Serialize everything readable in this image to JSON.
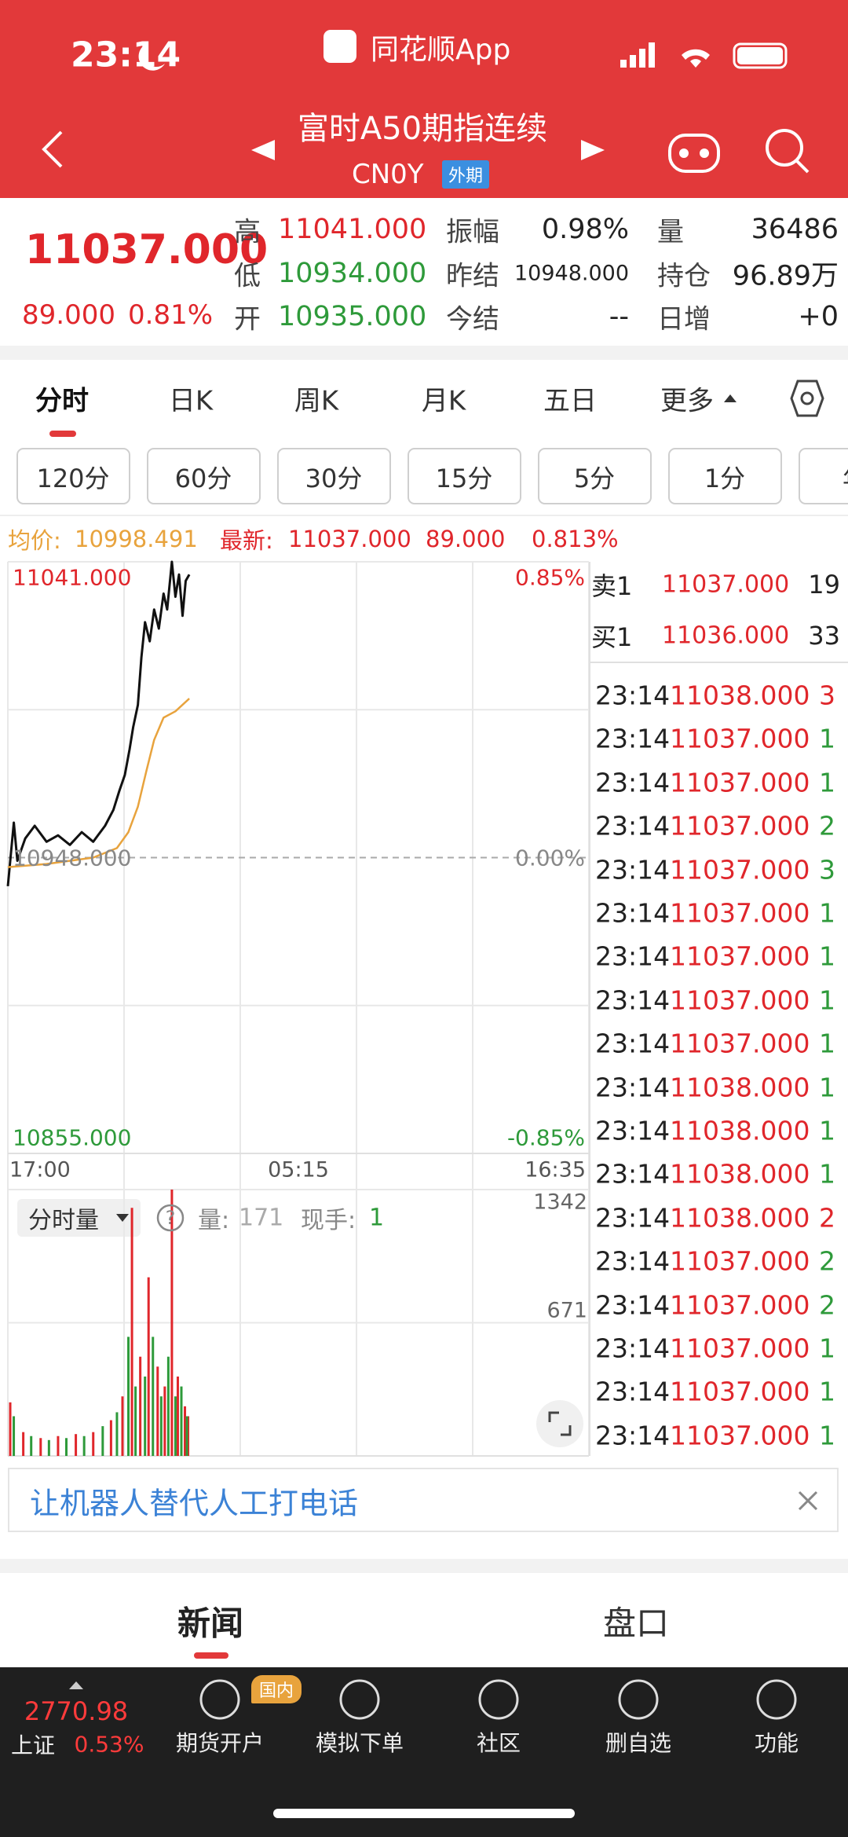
{
  "status_bar": {
    "time": "23:14",
    "app_name": "同花顺App"
  },
  "header": {
    "title": "富时A50期指连续",
    "code": "CN0Y",
    "badge": "外期"
  },
  "quote": {
    "price": "11037.000",
    "change": "89.000",
    "change_pct": "0.81%",
    "fields": [
      {
        "label": "高",
        "value": "11041.000",
        "color": "#e0262b"
      },
      {
        "label": "低",
        "value": "10934.000",
        "color": "#2e9a3a"
      },
      {
        "label": "开",
        "value": "10935.000",
        "color": "#2e9a3a"
      },
      {
        "label": "振幅",
        "value": "0.98%",
        "color": "#222222"
      },
      {
        "label": "昨结",
        "value": "10948.000",
        "color": "#222222"
      },
      {
        "label": "今结",
        "value": "--",
        "color": "#222222"
      },
      {
        "label": "量",
        "value": "36486",
        "color": "#222222"
      },
      {
        "label": "持仓",
        "value": "96.89万",
        "color": "#222222"
      },
      {
        "label": "日增",
        "value": "+0",
        "color": "#222222"
      }
    ]
  },
  "tabs": [
    "分时",
    "日K",
    "周K",
    "月K",
    "五日",
    "更多"
  ],
  "intervals": [
    "120分",
    "60分",
    "30分",
    "15分",
    "5分",
    "1分",
    "年"
  ],
  "info_bar": {
    "avg_label": "均价:",
    "avg": "10998.491",
    "latest_label": "最新:",
    "latest": "11037.000",
    "change": "89.000",
    "change_pct": "0.813%"
  },
  "chart_data": [
    {
      "type": "line",
      "xlim": [
        0,
        1470
      ],
      "xticks": [
        {
          "value": 0,
          "label": "17:00"
        },
        {
          "value": 735,
          "label": "05:15"
        },
        {
          "value": 1470,
          "label": "16:35"
        }
      ],
      "ylim": [
        10855,
        11041
      ],
      "yticks": [
        {
          "value": 11041,
          "label": "11041.000"
        },
        {
          "value": 10948,
          "label": "10948.000"
        },
        {
          "value": 10855,
          "label": "10855.000"
        }
      ],
      "y2lim": [
        -0.85,
        0.85
      ],
      "y2ticks": [
        {
          "value": 0.85,
          "label": "0.85%"
        },
        {
          "value": 0,
          "label": "0.00%"
        },
        {
          "value": -0.85,
          "label": "-0.85%"
        }
      ],
      "grid": true,
      "series": [
        {
          "color": "#111111",
          "x": [
            0,
            15,
            24,
            44,
            68,
            98,
            127,
            157,
            187,
            216,
            246,
            267,
            282,
            296,
            308,
            317,
            329,
            338,
            347,
            359,
            370,
            382,
            394,
            403,
            415,
            424,
            433,
            442,
            450,
            459
          ],
          "values": [
            10939,
            10959,
            10947,
            10954,
            10958,
            10953,
            10955,
            10952,
            10956,
            10953,
            10958,
            10963,
            10969,
            10974,
            10982,
            10989,
            10996,
            11011,
            11022,
            11016,
            11026,
            11020,
            11031,
            11026,
            11041,
            11030,
            11037,
            11024,
            11035,
            11037
          ]
        },
        {
          "color": "#e8a33d",
          "x": [
            0,
            98,
            216,
            276,
            305,
            329,
            350,
            370,
            394,
            424,
            459
          ],
          "values": [
            10945,
            10946,
            10948,
            10951,
            10956,
            10964,
            10975,
            10985,
            10992,
            10994,
            10998
          ]
        }
      ]
    },
    {
      "type": "bar",
      "xlim": [
        0,
        1470
      ],
      "ylim": [
        0,
        1342
      ],
      "yticks": [
        671,
        1342
      ],
      "series": [
        {
          "color": "#e0262b",
          "x": [
            6,
            39,
            83,
            127,
            172,
            216,
            261,
            290,
            314,
            335,
            356,
            379,
            397,
            415,
            430,
            448,
            456
          ],
          "values": [
            270,
            120,
            90,
            100,
            110,
            120,
            180,
            300,
            1250,
            500,
            900,
            450,
            350,
            1342,
            400,
            250,
            200
          ]
        },
        {
          "color": "#2e9a3a",
          "x": [
            15,
            59,
            104,
            148,
            193,
            240,
            276,
            305,
            323,
            347,
            367,
            388,
            406,
            424,
            439,
            453
          ],
          "values": [
            200,
            100,
            80,
            90,
            100,
            150,
            220,
            600,
            350,
            400,
            600,
            300,
            500,
            300,
            350,
            200
          ]
        }
      ]
    }
  ],
  "volume_header": {
    "selector": "分时量",
    "help_icon": "?",
    "volume_label": "量:",
    "volume": "171",
    "hand_label": "现手:",
    "hand": "1"
  },
  "order_book": [
    {
      "label": "卖1",
      "price": "11037.000",
      "qty": "19"
    },
    {
      "label": "买1",
      "price": "11036.000",
      "qty": "33"
    }
  ],
  "trades": [
    {
      "time": "23:14",
      "price": "11038.000",
      "volume": "3",
      "color": "#e0262b"
    },
    {
      "time": "23:14",
      "price": "11037.000",
      "volume": "1",
      "color": "#2e9a3a"
    },
    {
      "time": "23:14",
      "price": "11037.000",
      "volume": "1",
      "color": "#2e9a3a"
    },
    {
      "time": "23:14",
      "price": "11037.000",
      "volume": "2",
      "color": "#2e9a3a"
    },
    {
      "time": "23:14",
      "price": "11037.000",
      "volume": "3",
      "color": "#2e9a3a"
    },
    {
      "time": "23:14",
      "price": "11037.000",
      "volume": "1",
      "color": "#2e9a3a"
    },
    {
      "time": "23:14",
      "price": "11037.000",
      "volume": "1",
      "color": "#2e9a3a"
    },
    {
      "time": "23:14",
      "price": "11037.000",
      "volume": "1",
      "color": "#2e9a3a"
    },
    {
      "time": "23:14",
      "price": "11037.000",
      "volume": "1",
      "color": "#2e9a3a"
    },
    {
      "time": "23:14",
      "price": "11038.000",
      "volume": "1",
      "color": "#2e9a3a"
    },
    {
      "time": "23:14",
      "price": "11038.000",
      "volume": "1",
      "color": "#2e9a3a"
    },
    {
      "time": "23:14",
      "price": "11038.000",
      "volume": "1",
      "color": "#2e9a3a"
    },
    {
      "time": "23:14",
      "price": "11038.000",
      "volume": "2",
      "color": "#e0262b"
    },
    {
      "time": "23:14",
      "price": "11037.000",
      "volume": "2",
      "color": "#2e9a3a"
    },
    {
      "time": "23:14",
      "price": "11037.000",
      "volume": "2",
      "color": "#2e9a3a"
    },
    {
      "time": "23:14",
      "price": "11037.000",
      "volume": "1",
      "color": "#2e9a3a"
    },
    {
      "time": "23:14",
      "price": "11037.000",
      "volume": "1",
      "color": "#2e9a3a"
    },
    {
      "time": "23:14",
      "price": "11037.000",
      "volume": "1",
      "color": "#2e9a3a"
    }
  ],
  "ad": {
    "text": "让机器人替代人工打电话"
  },
  "bottom_tabs": [
    "新闻",
    "盘口"
  ],
  "nav": {
    "index_value": "2770.98",
    "index_name": "上证",
    "index_pct": "0.53%",
    "badge": "国内",
    "items": [
      "期货开户",
      "模拟下单",
      "社区",
      "删自选",
      "功能"
    ]
  }
}
